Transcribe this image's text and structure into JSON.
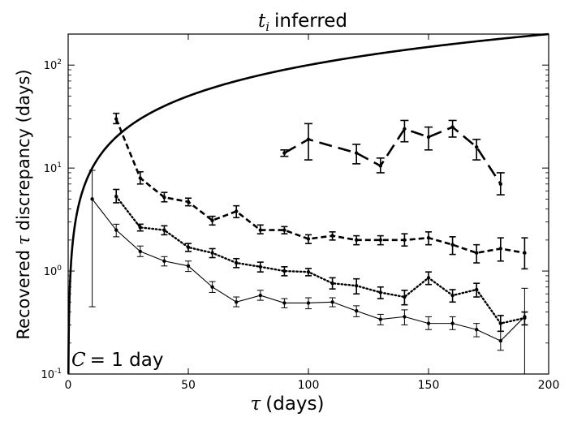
{
  "chart_data": {
    "type": "line",
    "title_symbol": "t",
    "title_subscript": "i",
    "title_text": "inferred",
    "xlabel_symbol": "τ",
    "xlabel_text": "(days)",
    "ylabel_prefix": "Recovered",
    "ylabel_symbol": "τ",
    "ylabel_suffix": "discrepancy (days)",
    "annotation_symbol": "C",
    "annotation_text": "= 1 day",
    "xlim": [
      0,
      200
    ],
    "ylim": [
      0.1,
      200
    ],
    "yscale": "log",
    "grid": false,
    "x_ticks": [
      0,
      50,
      100,
      150,
      200
    ],
    "y_ticks": [
      {
        "value": 0.1,
        "base": "10",
        "exp": "-1"
      },
      {
        "value": 1,
        "base": "10",
        "exp": "0"
      },
      {
        "value": 10,
        "base": "10",
        "exp": "1"
      },
      {
        "value": 100,
        "base": "10",
        "exp": "2"
      }
    ],
    "reference_line": {
      "name": "y = x",
      "style": "solid-thick",
      "function": "identity"
    },
    "series": [
      {
        "name": "long-dashed",
        "style": "long-dash",
        "x": [
          90,
          100,
          120,
          130,
          140,
          150,
          160,
          170,
          180
        ],
        "y": [
          14,
          19,
          14,
          10.5,
          24,
          20,
          25,
          16,
          7
        ],
        "ylo": [
          13,
          12,
          11,
          9,
          18,
          15,
          20,
          12,
          5.5
        ],
        "yhi": [
          15,
          27,
          17,
          12.5,
          29,
          25,
          29,
          19,
          9
        ]
      },
      {
        "name": "dashed",
        "style": "dash",
        "x": [
          20,
          30,
          40,
          50,
          60,
          70,
          80,
          90,
          100,
          110,
          120,
          130,
          140,
          150,
          160,
          170,
          180,
          190
        ],
        "y": [
          30,
          8,
          5.2,
          4.7,
          3.1,
          3.8,
          2.5,
          2.5,
          2.05,
          2.2,
          2.0,
          2.0,
          2.0,
          2.1,
          1.8,
          1.5,
          1.65,
          1.5
        ],
        "ylo": [
          27,
          7.0,
          4.7,
          4.3,
          2.8,
          3.3,
          2.3,
          2.3,
          1.85,
          2.0,
          1.8,
          1.8,
          1.75,
          1.8,
          1.45,
          1.2,
          1.25,
          1.05
        ],
        "yhi": [
          34,
          9.2,
          5.8,
          5.1,
          3.4,
          4.3,
          2.8,
          2.7,
          2.25,
          2.4,
          2.2,
          2.2,
          2.3,
          2.4,
          2.15,
          1.8,
          2.1,
          2.1
        ]
      },
      {
        "name": "dotted",
        "style": "dot",
        "x": [
          20,
          30,
          40,
          50,
          60,
          70,
          80,
          90,
          100,
          110,
          120,
          130,
          140,
          150,
          160,
          170,
          180,
          190
        ],
        "y": [
          5.3,
          2.65,
          2.5,
          1.7,
          1.5,
          1.2,
          1.1,
          1.0,
          0.98,
          0.76,
          0.72,
          0.62,
          0.56,
          0.86,
          0.58,
          0.66,
          0.31,
          0.35
        ],
        "ylo": [
          4.6,
          2.45,
          2.25,
          1.55,
          1.35,
          1.08,
          0.98,
          0.9,
          0.9,
          0.67,
          0.6,
          0.54,
          0.47,
          0.74,
          0.5,
          0.56,
          0.26,
          0.3
        ],
        "yhi": [
          6.2,
          2.85,
          2.75,
          1.85,
          1.65,
          1.32,
          1.22,
          1.1,
          1.06,
          0.86,
          0.84,
          0.7,
          0.65,
          0.98,
          0.66,
          0.76,
          0.37,
          0.4
        ]
      },
      {
        "name": "solid",
        "style": "solid-thin",
        "x": [
          10,
          20,
          30,
          40,
          50,
          60,
          70,
          80,
          90,
          100,
          110,
          120,
          130,
          140,
          150,
          160,
          170,
          180,
          190
        ],
        "y": [
          5.0,
          2.5,
          1.55,
          1.25,
          1.12,
          0.7,
          0.5,
          0.58,
          0.49,
          0.49,
          0.5,
          0.41,
          0.34,
          0.36,
          0.31,
          0.31,
          0.27,
          0.21,
          0.36
        ],
        "ylo": [
          0.45,
          2.15,
          1.38,
          1.12,
          0.99,
          0.62,
          0.45,
          0.52,
          0.44,
          0.43,
          0.45,
          0.36,
          0.3,
          0.3,
          0.27,
          0.27,
          0.23,
          0.17,
          0.1
        ],
        "yhi": [
          9.5,
          2.85,
          1.75,
          1.38,
          1.25,
          0.79,
          0.56,
          0.65,
          0.54,
          0.55,
          0.55,
          0.46,
          0.38,
          0.42,
          0.36,
          0.36,
          0.31,
          0.26,
          0.68
        ]
      }
    ]
  }
}
